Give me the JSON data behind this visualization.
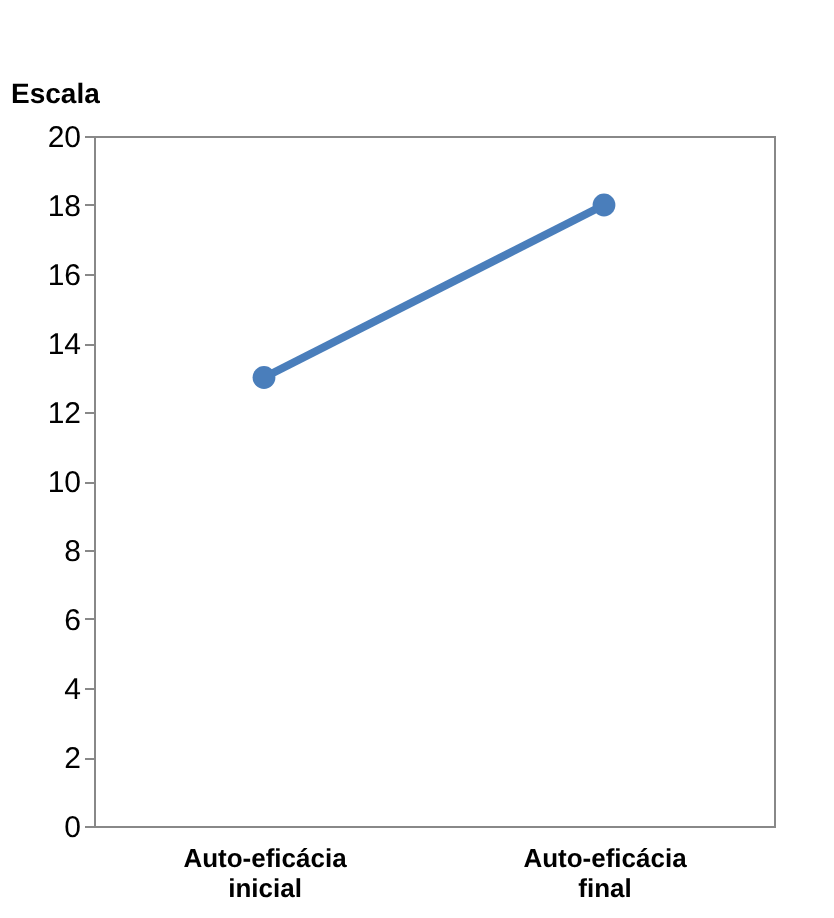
{
  "chart_data": {
    "type": "line",
    "ylabel": "Escala",
    "categories": [
      "Auto-eficácia inicial",
      "Auto-eficácia final"
    ],
    "series": [
      {
        "color": "#4a7ebb",
        "values": [
          13,
          18
        ]
      }
    ],
    "ylim": [
      0,
      20
    ],
    "yticks": [
      0,
      2,
      4,
      6,
      8,
      10,
      12,
      14,
      16,
      18,
      20
    ],
    "grid": false,
    "marker": "circle",
    "line_style": "solid"
  }
}
